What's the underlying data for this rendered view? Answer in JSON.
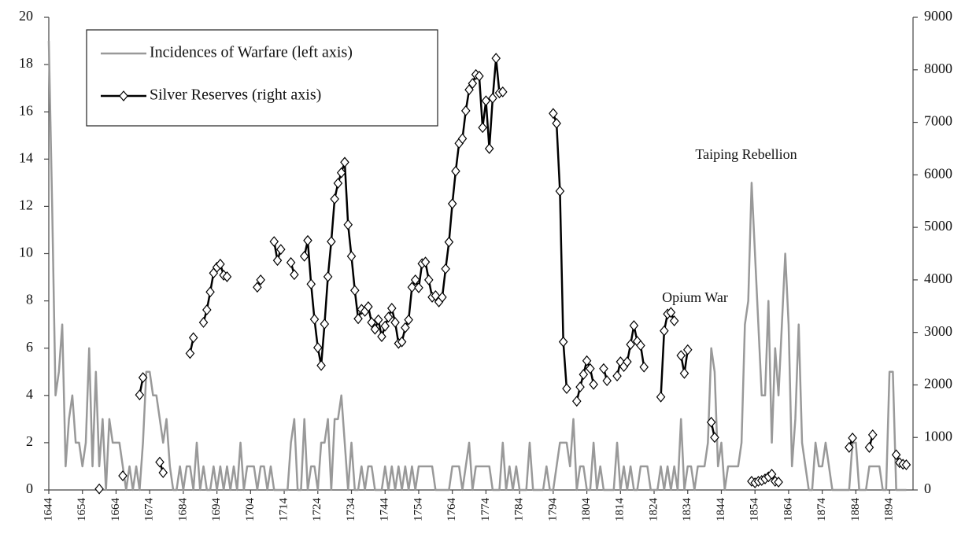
{
  "chart_data": {
    "type": "line",
    "annotations": [
      "Taiping Rebellion",
      "Opium War"
    ],
    "legend": "upper left",
    "x": [
      1644,
      1645,
      1646,
      1647,
      1648,
      1649,
      1650,
      1651,
      1652,
      1653,
      1654,
      1655,
      1656,
      1657,
      1658,
      1659,
      1660,
      1661,
      1662,
      1663,
      1664,
      1665,
      1666,
      1667,
      1668,
      1669,
      1670,
      1671,
      1672,
      1673,
      1674,
      1675,
      1676,
      1677,
      1678,
      1679,
      1680,
      1681,
      1682,
      1683,
      1684,
      1685,
      1686,
      1687,
      1688,
      1689,
      1690,
      1691,
      1692,
      1693,
      1694,
      1695,
      1696,
      1697,
      1698,
      1699,
      1700,
      1701,
      1702,
      1703,
      1704,
      1705,
      1706,
      1707,
      1708,
      1709,
      1710,
      1711,
      1712,
      1713,
      1714,
      1715,
      1716,
      1717,
      1718,
      1719,
      1720,
      1721,
      1722,
      1723,
      1724,
      1725,
      1726,
      1727,
      1728,
      1729,
      1730,
      1731,
      1732,
      1733,
      1734,
      1735,
      1736,
      1737,
      1738,
      1739,
      1740,
      1741,
      1742,
      1743,
      1744,
      1745,
      1746,
      1747,
      1748,
      1749,
      1750,
      1751,
      1752,
      1753,
      1754,
      1755,
      1756,
      1757,
      1758,
      1759,
      1760,
      1761,
      1762,
      1763,
      1764,
      1765,
      1766,
      1767,
      1768,
      1769,
      1770,
      1771,
      1772,
      1773,
      1774,
      1775,
      1776,
      1777,
      1778,
      1779,
      1780,
      1781,
      1782,
      1783,
      1784,
      1785,
      1786,
      1787,
      1788,
      1789,
      1790,
      1791,
      1792,
      1793,
      1794,
      1795,
      1796,
      1797,
      1798,
      1799,
      1800,
      1801,
      1802,
      1803,
      1804,
      1805,
      1806,
      1807,
      1808,
      1809,
      1810,
      1811,
      1812,
      1813,
      1814,
      1815,
      1816,
      1817,
      1818,
      1819,
      1820,
      1821,
      1822,
      1823,
      1824,
      1825,
      1826,
      1827,
      1828,
      1829,
      1830,
      1831,
      1832,
      1833,
      1834,
      1835,
      1836,
      1837,
      1838,
      1839,
      1840,
      1841,
      1842,
      1843,
      1844,
      1845,
      1846,
      1847,
      1848,
      1849,
      1850,
      1851,
      1852,
      1853,
      1854,
      1855,
      1856,
      1857,
      1858,
      1859,
      1860,
      1861,
      1862,
      1863,
      1864,
      1865,
      1866,
      1867,
      1868,
      1869,
      1870,
      1871,
      1872,
      1873,
      1874,
      1875,
      1876,
      1877,
      1878,
      1879,
      1880,
      1881,
      1882,
      1883,
      1884,
      1885,
      1886,
      1887,
      1888,
      1889,
      1890,
      1891,
      1892,
      1893,
      1894,
      1895,
      1896,
      1897,
      1898,
      1899
    ],
    "series": [
      {
        "name": "Incidences of Warfare (left axis)",
        "color": "#999999",
        "axis": "y",
        "values": [
          19,
          12,
          4,
          5,
          7,
          1,
          3,
          4,
          2,
          2,
          1,
          2,
          6,
          1,
          5,
          1,
          3,
          0,
          3,
          2,
          2,
          2,
          1,
          0,
          1,
          0,
          1,
          0,
          2,
          5,
          5,
          4,
          4,
          3,
          2,
          3,
          1,
          0,
          0,
          1,
          0,
          1,
          1,
          0,
          2,
          0,
          1,
          0,
          0,
          1,
          0,
          1,
          0,
          1,
          0,
          1,
          0,
          2,
          0,
          1,
          1,
          1,
          0,
          1,
          1,
          0,
          1,
          0,
          0,
          0,
          0,
          0,
          2,
          3,
          0,
          0,
          3,
          0,
          1,
          1,
          0,
          2,
          2,
          3,
          0,
          3,
          3,
          4,
          2,
          0,
          2,
          0,
          0,
          1,
          0,
          1,
          1,
          0,
          0,
          0,
          1,
          0,
          1,
          0,
          1,
          0,
          1,
          0,
          1,
          0,
          1,
          1,
          1,
          1,
          1,
          0,
          0,
          0,
          0,
          0,
          1,
          1,
          1,
          0,
          1,
          2,
          0,
          1,
          1,
          1,
          1,
          1,
          0,
          0,
          0,
          2,
          0,
          1,
          0,
          1,
          0,
          0,
          0,
          2,
          0,
          0,
          0,
          0,
          1,
          0,
          0,
          1,
          2,
          2,
          2,
          1,
          3,
          0,
          1,
          1,
          0,
          0,
          2,
          0,
          1,
          0,
          0,
          0,
          0,
          2,
          0,
          1,
          0,
          1,
          0,
          0,
          1,
          1,
          1,
          0,
          0,
          0,
          1,
          0,
          1,
          0,
          1,
          0,
          3,
          0,
          1,
          1,
          0,
          1,
          1,
          1,
          2,
          6,
          5,
          1,
          2,
          0,
          1,
          1,
          1,
          1,
          2,
          7,
          8,
          13,
          10,
          7,
          4,
          4,
          8,
          2,
          6,
          4,
          7,
          10,
          7,
          1,
          3,
          7,
          2,
          1,
          0,
          0,
          2,
          1,
          1,
          2,
          1,
          0,
          0,
          0,
          0,
          0,
          0,
          2,
          2,
          0,
          0,
          0,
          1,
          1,
          1,
          1,
          0,
          0,
          5,
          5,
          0,
          0,
          0,
          0
        ]
      },
      {
        "name": "Silver Reserves (right axis)",
        "color": "#000000",
        "axis": "y2",
        "marker": "diamond",
        "values": [
          null,
          null,
          null,
          null,
          null,
          null,
          null,
          null,
          null,
          null,
          null,
          null,
          null,
          null,
          null,
          20,
          null,
          null,
          null,
          null,
          null,
          null,
          270,
          null,
          null,
          null,
          null,
          1810,
          2140,
          null,
          null,
          null,
          null,
          530,
          330,
          null,
          null,
          null,
          null,
          null,
          null,
          null,
          2600,
          2900,
          null,
          null,
          3190,
          3430,
          3770,
          4130,
          4240,
          4300,
          4090,
          4060,
          null,
          null,
          null,
          null,
          null,
          null,
          null,
          null,
          3860,
          4000,
          null,
          null,
          null,
          4730,
          4370,
          4580,
          null,
          null,
          4330,
          4100,
          null,
          null,
          4450,
          4750,
          3920,
          3250,
          2710,
          2370,
          3160,
          4060,
          4730,
          5540,
          5840,
          6040,
          6240,
          5050,
          4450,
          3800,
          3260,
          3440,
          3400,
          3490,
          3190,
          3060,
          3240,
          2920,
          3120,
          3290,
          3460,
          3190,
          2790,
          2820,
          3090,
          3240,
          3860,
          4000,
          3850,
          4310,
          4340,
          4000,
          3670,
          3700,
          3580,
          3670,
          4210,
          4720,
          5450,
          6070,
          6600,
          6690,
          7220,
          7620,
          7740,
          7910,
          7880,
          6900,
          7410,
          6500,
          7460,
          8220,
          7560,
          7580,
          null,
          null,
          null,
          null,
          null,
          null,
          null,
          null,
          null,
          null,
          null,
          null,
          null,
          null,
          7170,
          6980,
          5690,
          2820,
          1930,
          null,
          null,
          1690,
          1960,
          2200,
          2460,
          2310,
          2010,
          null,
          null,
          2310,
          2080,
          null,
          null,
          2170,
          2440,
          2350,
          2440,
          2770,
          3130,
          2830,
          2750,
          2340,
          null,
          null,
          null,
          null,
          1770,
          3030,
          3350,
          3380,
          3220,
          null,
          2560,
          2220,
          2670,
          null,
          null,
          null,
          null,
          null,
          null,
          1290,
          1000,
          null,
          null,
          null,
          null,
          null,
          null,
          null,
          null,
          null,
          null,
          165,
          135,
          165,
          180,
          210,
          250,
          300,
          165,
          150,
          null,
          null,
          null,
          null,
          null,
          null,
          null,
          null,
          null,
          null,
          null,
          null,
          null,
          null,
          null,
          null,
          null,
          null,
          null,
          null,
          810,
          990,
          null,
          null,
          null,
          null,
          810,
          1050,
          null,
          null,
          null,
          null,
          null,
          null,
          670,
          520,
          490,
          480
        ]
      }
    ],
    "xlim": [
      1644,
      1901
    ],
    "xticks": [
      1644,
      1654,
      1664,
      1674,
      1684,
      1694,
      1704,
      1714,
      1724,
      1734,
      1744,
      1754,
      1764,
      1774,
      1784,
      1794,
      1804,
      1814,
      1824,
      1834,
      1844,
      1854,
      1864,
      1874,
      1884,
      1894
    ],
    "ylim": [
      0,
      20
    ],
    "yticks": [
      0,
      2,
      4,
      6,
      8,
      10,
      12,
      14,
      16,
      18,
      20
    ],
    "y2lim": [
      0,
      9000
    ],
    "y2ticks": [
      0,
      1000,
      2000,
      3000,
      4000,
      5000,
      6000,
      7000,
      8000,
      9000
    ],
    "grid": false
  }
}
